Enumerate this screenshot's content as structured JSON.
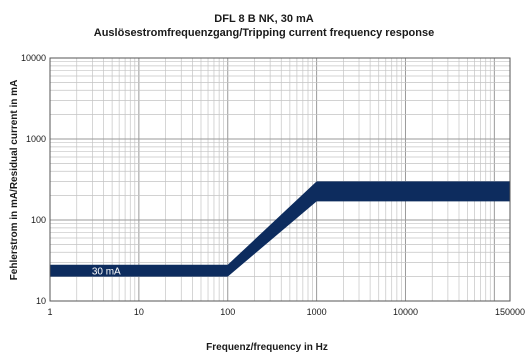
{
  "chart_data": {
    "type": "area",
    "title": "DFL 8 B NK, 30 mA",
    "subtitle": "Auslösestromfrequenzgang/Tripping current frequency response",
    "xlabel": "Frequenz/frequency in Hz",
    "ylabel": "Fehlerstrom in mA/Residual current in mA",
    "x_scale": "log",
    "y_scale": "log",
    "xlim": [
      1,
      150000
    ],
    "ylim": [
      10,
      10000
    ],
    "x_ticks": [
      {
        "value": 1,
        "label": "1"
      },
      {
        "value": 10,
        "label": "10"
      },
      {
        "value": 100,
        "label": "100"
      },
      {
        "value": 1000,
        "label": "1000"
      },
      {
        "value": 10000,
        "label": "10000"
      },
      {
        "value": 150000,
        "label": "150000"
      }
    ],
    "y_ticks": [
      {
        "value": 10,
        "label": "10"
      },
      {
        "value": 100,
        "label": "100"
      },
      {
        "value": 1000,
        "label": "1000"
      },
      {
        "value": 10000,
        "label": "10000"
      }
    ],
    "grid": true,
    "series": [
      {
        "name": "30 mA",
        "color": "#0d2c5e",
        "x": [
          1,
          100,
          1000,
          150000
        ],
        "upper": [
          28,
          28,
          300,
          300
        ],
        "lower": [
          20,
          20,
          170,
          170
        ]
      }
    ]
  }
}
